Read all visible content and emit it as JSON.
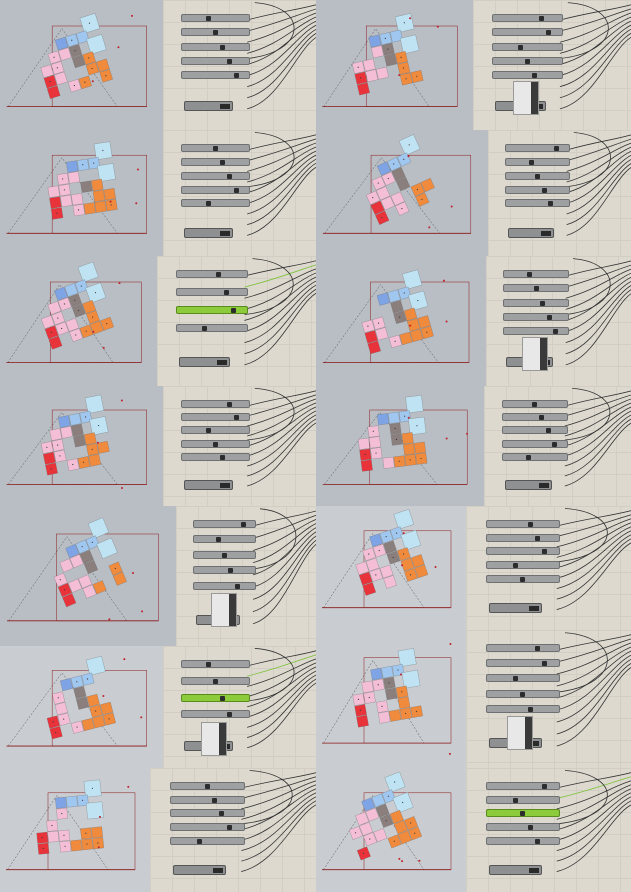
{
  "page": {
    "title": ""
  },
  "tiles": [
    {
      "id": "t1",
      "viewport": {
        "variant": "a",
        "axis_color": "#8b1a1a"
      },
      "editor": {
        "sliders": 5,
        "node_label": "",
        "has_vnode": false,
        "green_slider": false
      }
    },
    {
      "id": "t2",
      "viewport": {
        "variant": "b",
        "axis_color": "#8b1a1a"
      },
      "editor": {
        "sliders": 5,
        "node_label": "",
        "has_vnode": true,
        "green_slider": false
      }
    },
    {
      "id": "t3",
      "viewport": {
        "variant": "c",
        "axis_color": "#8b1a1a"
      },
      "editor": {
        "sliders": 5,
        "node_label": "",
        "has_vnode": false,
        "green_slider": false
      }
    },
    {
      "id": "t4",
      "viewport": {
        "variant": "d",
        "axis_color": "#8b1a1a"
      },
      "editor": {
        "sliders": 5,
        "node_label": "",
        "has_vnode": false,
        "green_slider": false
      }
    },
    {
      "id": "t5",
      "viewport": {
        "variant": "e",
        "axis_color": "#8b1a1a"
      },
      "editor": {
        "sliders": 4,
        "node_label": "",
        "has_vnode": false,
        "green_slider": true
      }
    },
    {
      "id": "t6",
      "viewport": {
        "variant": "f",
        "axis_color": "#8b1a1a"
      },
      "editor": {
        "sliders": 5,
        "node_label": "",
        "has_vnode": true,
        "green_slider": false
      }
    },
    {
      "id": "t7",
      "viewport": {
        "variant": "g",
        "axis_color": "#8b1a1a"
      },
      "editor": {
        "sliders": 5,
        "node_label": "",
        "has_vnode": false,
        "green_slider": false
      }
    },
    {
      "id": "t8",
      "viewport": {
        "variant": "h",
        "axis_color": "#8b1a1a"
      },
      "editor": {
        "sliders": 5,
        "node_label": "",
        "has_vnode": false,
        "green_slider": false
      }
    },
    {
      "id": "t9",
      "viewport": {
        "variant": "i",
        "axis_color": "#8b1a1a"
      },
      "editor": {
        "sliders": 5,
        "node_label": "",
        "has_vnode": true,
        "green_slider": false
      }
    },
    {
      "id": "t10",
      "viewport": {
        "variant": "j",
        "axis_color": "#8b1a1a"
      },
      "editor": {
        "sliders": 5,
        "node_label": "",
        "has_vnode": false,
        "green_slider": false
      }
    },
    {
      "id": "t11",
      "viewport": {
        "variant": "k",
        "axis_color": "#8b1a1a"
      },
      "editor": {
        "sliders": 4,
        "node_label": "",
        "has_vnode": true,
        "green_slider": true
      }
    },
    {
      "id": "t12",
      "viewport": {
        "variant": "l",
        "axis_color": "#8b1a1a"
      },
      "editor": {
        "sliders": 5,
        "node_label": "",
        "has_vnode": true,
        "green_slider": false
      }
    },
    {
      "id": "t13",
      "viewport": {
        "variant": "m",
        "axis_color": "#8b1a1a"
      },
      "editor": {
        "sliders": 5,
        "node_label": "",
        "has_vnode": false,
        "green_slider": false
      }
    },
    {
      "id": "t14",
      "viewport": {
        "variant": "n",
        "axis_color": "#8b1a1a"
      },
      "editor": {
        "sliders": 5,
        "node_label": "",
        "has_vnode": false,
        "green_slider": true
      }
    }
  ],
  "colors": {
    "light_blue": "#bfe3f2",
    "sky_blue": "#9fc7ef",
    "mid_blue": "#7ea4e6",
    "pink": "#f4bfd6",
    "orange": "#f08a3c",
    "red": "#e8333a",
    "gray": "#8a7f7c",
    "editor_bg": "#ddd9cf",
    "viewport_bg": "#b9bec5"
  }
}
